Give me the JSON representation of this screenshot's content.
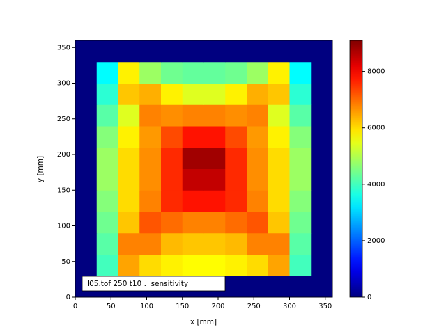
{
  "chart_data": {
    "type": "heatmap",
    "annotation": "I05.tof 250 t10 .  sensitivity",
    "x_label": "x [mm]",
    "y_label": "y [mm]",
    "x_edges": [
      0,
      30,
      60,
      90,
      120,
      150,
      180,
      210,
      240,
      270,
      300,
      330,
      360
    ],
    "y_edges": [
      0,
      30,
      60,
      90,
      120,
      150,
      180,
      210,
      240,
      270,
      300,
      330,
      360
    ],
    "z": [
      [
        0,
        0,
        0,
        0,
        0,
        0,
        0,
        0,
        0,
        0,
        0,
        0
      ],
      [
        0,
        4000,
        6500,
        6000,
        5800,
        5700,
        5700,
        5800,
        6000,
        6500,
        4000,
        0
      ],
      [
        0,
        4200,
        6800,
        6800,
        6300,
        6200,
        6200,
        6300,
        6800,
        6800,
        4200,
        0
      ],
      [
        0,
        4400,
        6200,
        7200,
        7000,
        6800,
        6800,
        7000,
        7200,
        6200,
        4400,
        0
      ],
      [
        0,
        4600,
        6000,
        6800,
        7600,
        7800,
        7800,
        7600,
        6800,
        6000,
        4600,
        0
      ],
      [
        0,
        4800,
        6000,
        6700,
        7600,
        8500,
        8500,
        7600,
        6700,
        6000,
        4800,
        0
      ],
      [
        0,
        4800,
        6000,
        6700,
        7600,
        8800,
        8800,
        7600,
        6700,
        6000,
        4800,
        0
      ],
      [
        0,
        4600,
        5800,
        6600,
        7300,
        7800,
        7800,
        7300,
        6600,
        5800,
        4600,
        0
      ],
      [
        0,
        4200,
        5400,
        6800,
        6700,
        6800,
        6800,
        6700,
        6800,
        5400,
        4200,
        0
      ],
      [
        0,
        3800,
        6200,
        6400,
        5800,
        5400,
        5400,
        5800,
        6400,
        6200,
        3800,
        0
      ],
      [
        0,
        3400,
        5800,
        4800,
        4400,
        4300,
        4300,
        4400,
        4800,
        5800,
        3400,
        0
      ],
      [
        0,
        0,
        0,
        0,
        0,
        0,
        0,
        0,
        0,
        0,
        0,
        0
      ]
    ],
    "colormap": "jet",
    "clim": [
      0,
      9100
    ],
    "cticks": [
      0,
      2000,
      4000,
      6000,
      8000
    ],
    "xlim": [
      0,
      360
    ],
    "ylim": [
      0,
      360
    ],
    "xticks": [
      0,
      50,
      100,
      150,
      200,
      250,
      300,
      350
    ],
    "yticks": [
      0,
      50,
      100,
      150,
      200,
      250,
      300,
      350
    ]
  }
}
